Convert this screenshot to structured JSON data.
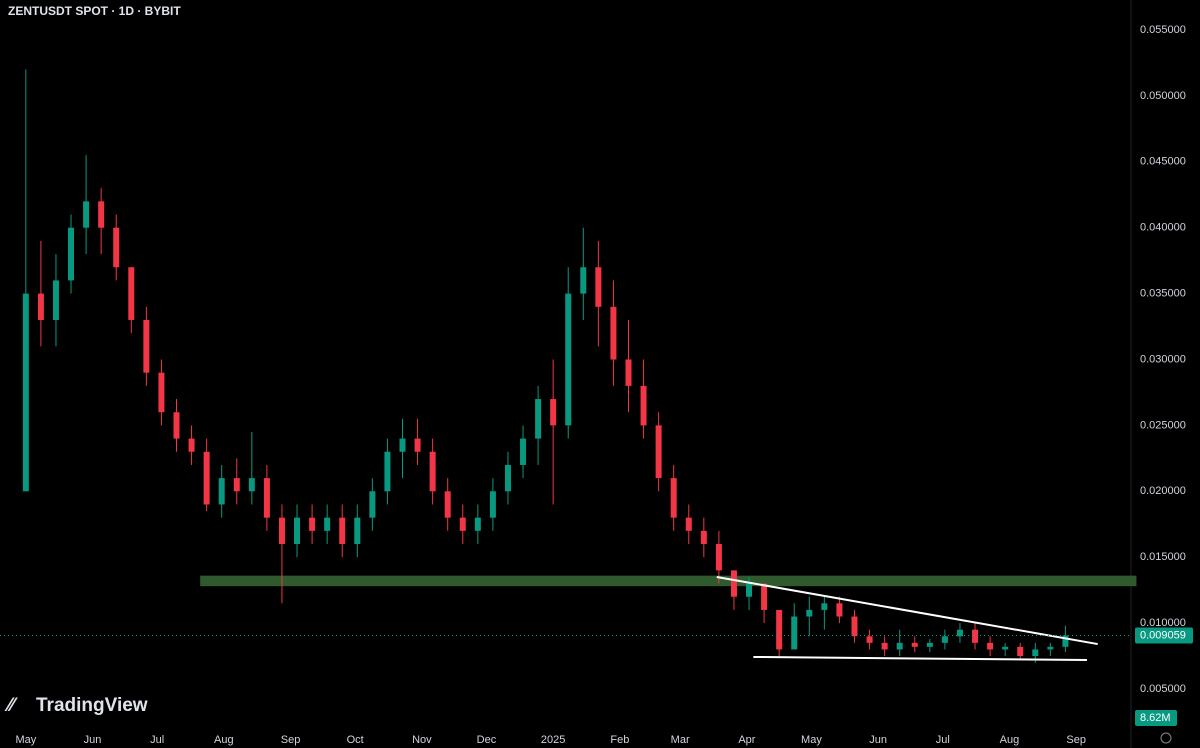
{
  "chart_data": {
    "type": "candlestick",
    "title": "ZENTUSDT SPOT · 1D · BYBIT",
    "brand": "TradingView",
    "up_color": "#089981",
    "down_color": "#f23645",
    "xlim": [
      -12,
      513
    ],
    "ylim": [
      0.005,
      0.055
    ],
    "xticks": [
      {
        "value": 0,
        "label": "May"
      },
      {
        "value": 31,
        "label": "Jun"
      },
      {
        "value": 61,
        "label": "Jul"
      },
      {
        "value": 92,
        "label": "Aug"
      },
      {
        "value": 123,
        "label": "Sep"
      },
      {
        "value": 153,
        "label": "Oct"
      },
      {
        "value": 184,
        "label": "Nov"
      },
      {
        "value": 214,
        "label": "Dec"
      },
      {
        "value": 245,
        "label": "2025"
      },
      {
        "value": 276,
        "label": "Feb"
      },
      {
        "value": 304,
        "label": "Mar"
      },
      {
        "value": 335,
        "label": "Apr"
      },
      {
        "value": 365,
        "label": "May"
      },
      {
        "value": 396,
        "label": "Jun"
      },
      {
        "value": 426,
        "label": "Jul"
      },
      {
        "value": 457,
        "label": "Aug"
      },
      {
        "value": 488,
        "label": "Sep"
      }
    ],
    "yticks": [
      {
        "value": 0.005,
        "label": "0.005000"
      },
      {
        "value": 0.01,
        "label": "0.010000"
      },
      {
        "value": 0.015,
        "label": "0.015000"
      },
      {
        "value": 0.02,
        "label": "0.020000"
      },
      {
        "value": 0.025,
        "label": "0.025000"
      },
      {
        "value": 0.03,
        "label": "0.030000"
      },
      {
        "value": 0.035,
        "label": "0.035000"
      },
      {
        "value": 0.04,
        "label": "0.040000"
      },
      {
        "value": 0.045,
        "label": "0.045000"
      },
      {
        "value": 0.05,
        "label": "0.050000"
      },
      {
        "value": 0.055,
        "label": "0.055000"
      }
    ],
    "x": [
      0,
      7,
      14,
      21,
      28,
      35,
      42,
      49,
      56,
      63,
      70,
      77,
      84,
      91,
      98,
      105,
      112,
      119,
      126,
      133,
      140,
      147,
      154,
      161,
      168,
      175,
      182,
      189,
      196,
      203,
      210,
      217,
      224,
      231,
      238,
      245,
      252,
      259,
      266,
      273,
      280,
      287,
      294,
      301,
      308,
      315,
      322,
      329,
      336,
      343,
      350,
      357,
      364,
      371,
      378,
      385,
      392,
      399,
      406,
      413,
      420,
      427,
      434,
      441,
      448,
      455,
      462,
      469,
      476,
      483
    ],
    "open": [
      0.02,
      0.035,
      0.033,
      0.036,
      0.04,
      0.042,
      0.04,
      0.037,
      0.033,
      0.029,
      0.026,
      0.024,
      0.023,
      0.019,
      0.021,
      0.02,
      0.021,
      0.018,
      0.016,
      0.018,
      0.017,
      0.018,
      0.016,
      0.018,
      0.02,
      0.023,
      0.024,
      0.023,
      0.02,
      0.018,
      0.017,
      0.018,
      0.02,
      0.022,
      0.024,
      0.027,
      0.025,
      0.035,
      0.037,
      0.034,
      0.03,
      0.028,
      0.025,
      0.021,
      0.018,
      0.017,
      0.016,
      0.014,
      0.012,
      0.013,
      0.011,
      0.008,
      0.0105,
      0.011,
      0.0115,
      0.0105,
      0.009,
      0.0085,
      0.008,
      0.0085,
      0.0082,
      0.0085,
      0.009,
      0.0095,
      0.0085,
      0.008,
      0.0082,
      0.0075,
      0.008,
      0.0082
    ],
    "high": [
      0.052,
      0.039,
      0.038,
      0.041,
      0.0455,
      0.043,
      0.041,
      0.037,
      0.034,
      0.03,
      0.027,
      0.025,
      0.024,
      0.022,
      0.0225,
      0.0245,
      0.022,
      0.019,
      0.019,
      0.019,
      0.019,
      0.019,
      0.019,
      0.021,
      0.024,
      0.0255,
      0.0255,
      0.024,
      0.021,
      0.019,
      0.019,
      0.021,
      0.023,
      0.025,
      0.028,
      0.03,
      0.037,
      0.04,
      0.039,
      0.036,
      0.033,
      0.03,
      0.026,
      0.022,
      0.019,
      0.018,
      0.017,
      0.014,
      0.0135,
      0.013,
      0.011,
      0.0115,
      0.012,
      0.012,
      0.012,
      0.011,
      0.0095,
      0.009,
      0.0095,
      0.009,
      0.0088,
      0.0095,
      0.01,
      0.01,
      0.009,
      0.0085,
      0.0085,
      0.0085,
      0.0085,
      0.0098
    ],
    "low": [
      0.02,
      0.031,
      0.031,
      0.035,
      0.038,
      0.038,
      0.036,
      0.032,
      0.028,
      0.025,
      0.023,
      0.022,
      0.0185,
      0.018,
      0.019,
      0.019,
      0.017,
      0.0115,
      0.015,
      0.016,
      0.016,
      0.015,
      0.015,
      0.017,
      0.019,
      0.021,
      0.022,
      0.019,
      0.017,
      0.016,
      0.016,
      0.017,
      0.019,
      0.021,
      0.022,
      0.019,
      0.024,
      0.033,
      0.031,
      0.028,
      0.026,
      0.024,
      0.02,
      0.017,
      0.016,
      0.015,
      0.013,
      0.011,
      0.011,
      0.01,
      0.0075,
      0.008,
      0.009,
      0.0095,
      0.01,
      0.0085,
      0.008,
      0.0075,
      0.0075,
      0.0078,
      0.0078,
      0.008,
      0.0085,
      0.008,
      0.0075,
      0.0075,
      0.0072,
      0.007,
      0.0075,
      0.0078
    ],
    "close": [
      0.035,
      0.033,
      0.036,
      0.04,
      0.042,
      0.04,
      0.037,
      0.033,
      0.029,
      0.026,
      0.024,
      0.023,
      0.019,
      0.021,
      0.02,
      0.021,
      0.018,
      0.016,
      0.018,
      0.017,
      0.018,
      0.016,
      0.018,
      0.02,
      0.023,
      0.024,
      0.023,
      0.02,
      0.018,
      0.017,
      0.018,
      0.02,
      0.022,
      0.024,
      0.027,
      0.025,
      0.035,
      0.037,
      0.034,
      0.03,
      0.028,
      0.025,
      0.021,
      0.018,
      0.017,
      0.016,
      0.014,
      0.012,
      0.013,
      0.011,
      0.008,
      0.0105,
      0.011,
      0.0115,
      0.0105,
      0.009,
      0.0085,
      0.008,
      0.0085,
      0.0082,
      0.0085,
      0.009,
      0.0095,
      0.0085,
      0.008,
      0.0082,
      0.0075,
      0.008,
      0.0082,
      0.009059
    ],
    "zone": {
      "x": [
        81,
        516
      ],
      "y": [
        0.0128,
        0.0136
      ],
      "color": "#2e5a2e"
    },
    "trendlines": [
      {
        "x": [
          321,
          498
        ],
        "y": [
          0.0135,
          0.00841
        ]
      },
      {
        "x": [
          338,
          493
        ],
        "y": [
          0.00743,
          0.0072
        ]
      }
    ],
    "last_price": {
      "value": 0.009059,
      "label": "0.009059"
    },
    "last_volume": {
      "value": 8620000,
      "label": "8.62M"
    }
  }
}
